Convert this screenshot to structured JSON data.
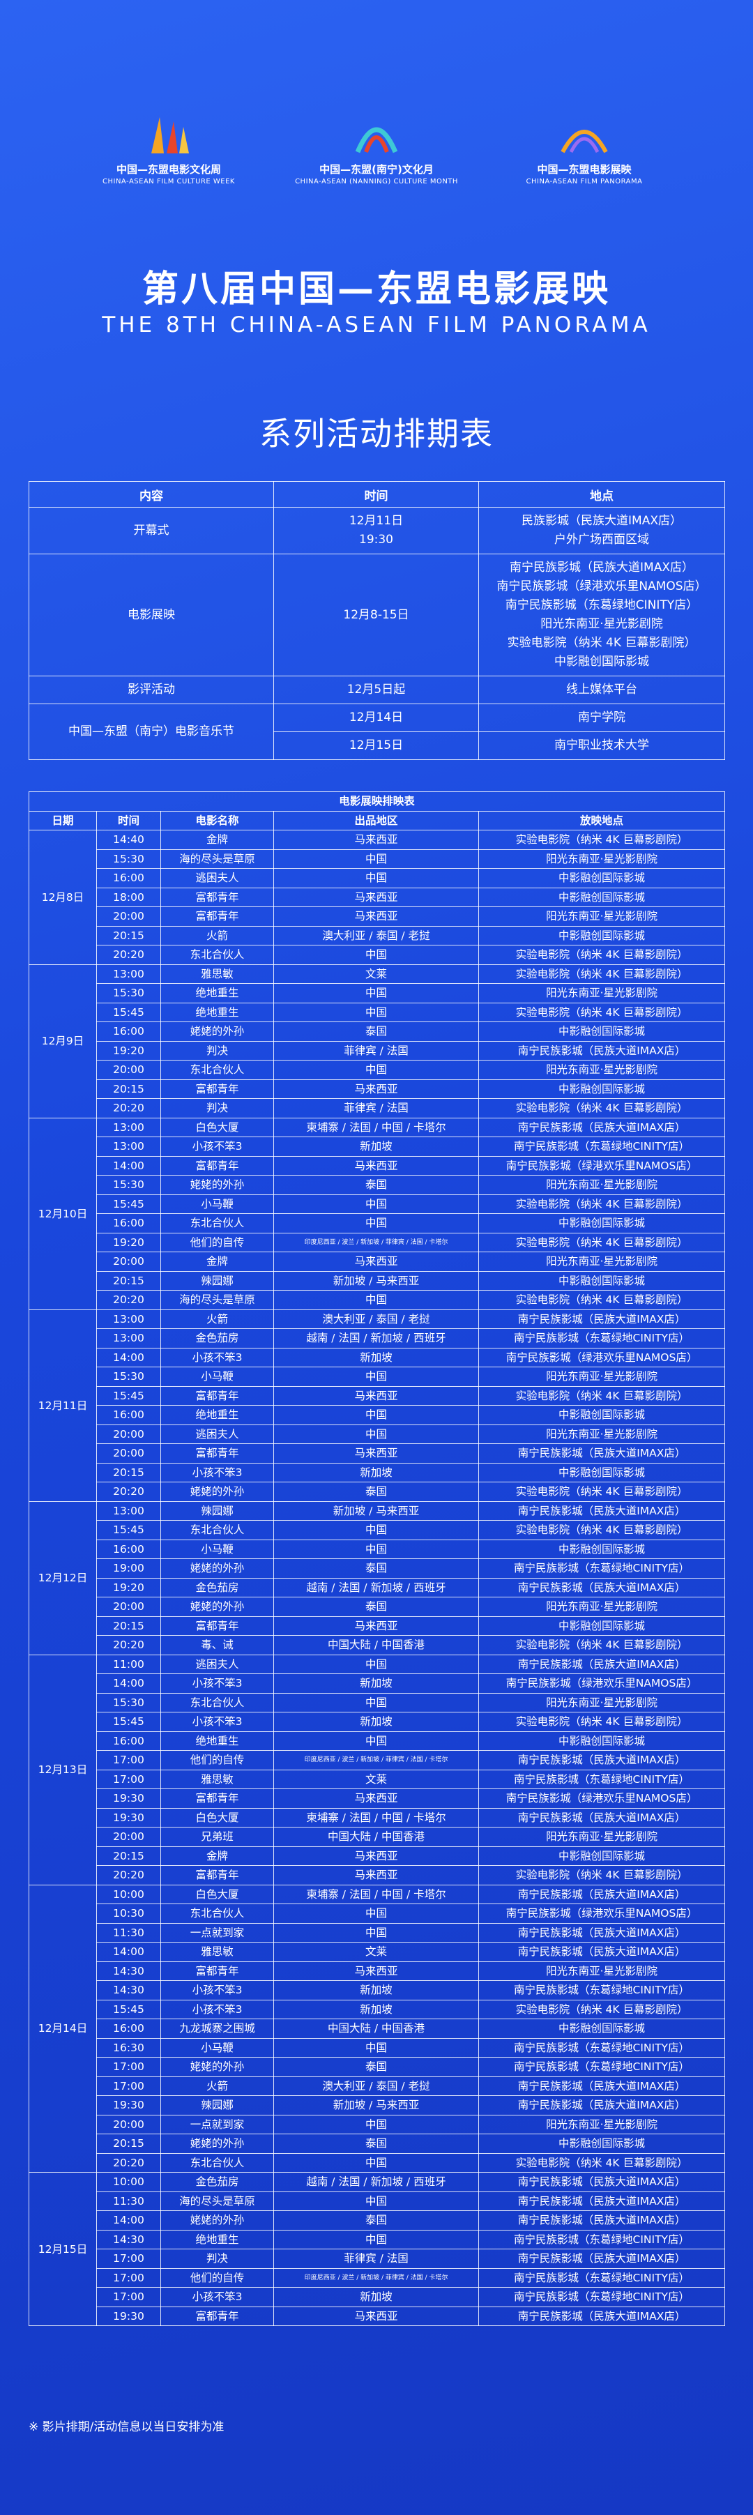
{
  "header": {
    "logos": [
      {
        "name": "中国—东盟电影文化周",
        "en": "CHINA-ASEAN FILM CULTURE WEEK"
      },
      {
        "name": "中国—东盟(南宁)文化月",
        "en": "CHINA-ASEAN (NANNING) CULTURE MONTH"
      },
      {
        "name": "中国—东盟电影展映",
        "en": "CHINA-ASEAN FILM PANORAMA"
      }
    ],
    "title": "第八届中国—东盟电影展映",
    "subtitle": "THE 8TH CHINA-ASEAN FILM PANORAMA",
    "heading": "系列活动排期表"
  },
  "events": {
    "headers": [
      "内容",
      "时间",
      "地点"
    ],
    "rows": [
      {
        "content": "开幕式",
        "items": [
          {
            "time": [
              "12月11日",
              "19:30"
            ],
            "venue": [
              "民族影城（民族大道IMAX店）",
              "户外广场西面区域"
            ]
          }
        ]
      },
      {
        "content": "电影展映",
        "items": [
          {
            "time": [
              "12月8-15日"
            ],
            "venue": [
              "南宁民族影城（民族大道IMAX店）",
              "南宁民族影城（绿港欢乐里NAMOS店）",
              "南宁民族影城（东葛绿地CINITY店）",
              "阳光东南亚·星光影剧院",
              "实验电影院（纳米 4K 巨幕影剧院）",
              "中影融创国际影城"
            ]
          }
        ]
      },
      {
        "content": "影评活动",
        "items": [
          {
            "time": [
              "12月5日起"
            ],
            "venue": [
              "线上媒体平台"
            ]
          }
        ]
      },
      {
        "content": "中国—东盟（南宁）电影音乐节",
        "items": [
          {
            "time": [
              "12月14日"
            ],
            "venue": [
              "南宁学院"
            ]
          },
          {
            "time": [
              "12月15日"
            ],
            "venue": [
              "南宁职业技术大学"
            ]
          }
        ]
      }
    ]
  },
  "schedule": {
    "title": "电影展映排映表",
    "headers": [
      "日期",
      "时间",
      "电影名称",
      "出品地区",
      "放映地点"
    ],
    "days": [
      {
        "date": "12月8日",
        "rows": [
          [
            "14:40",
            "金牌",
            "马来西亚",
            "实验电影院（纳米 4K 巨幕影剧院）"
          ],
          [
            "15:30",
            "海的尽头是草原",
            "中国",
            "阳光东南亚·星光影剧院"
          ],
          [
            "16:00",
            "逃困夫人",
            "中国",
            "中影融创国际影城"
          ],
          [
            "18:00",
            "富都青年",
            "马来西亚",
            "中影融创国际影城"
          ],
          [
            "20:00",
            "富都青年",
            "马来西亚",
            "阳光东南亚·星光影剧院"
          ],
          [
            "20:15",
            "火箭",
            "澳大利亚 / 泰国 / 老挝",
            "中影融创国际影城"
          ],
          [
            "20:20",
            "东北合伙人",
            "中国",
            "实验电影院（纳米 4K 巨幕影剧院）"
          ]
        ]
      },
      {
        "date": "12月9日",
        "rows": [
          [
            "13:00",
            "雅思敏",
            "文莱",
            "实验电影院（纳米 4K 巨幕影剧院）"
          ],
          [
            "15:30",
            "绝地重生",
            "中国",
            "阳光东南亚·星光影剧院"
          ],
          [
            "15:45",
            "绝地重生",
            "中国",
            "实验电影院（纳米 4K 巨幕影剧院）"
          ],
          [
            "16:00",
            "姥姥的外孙",
            "泰国",
            "中影融创国际影城"
          ],
          [
            "19:20",
            "判决",
            "菲律宾 / 法国",
            "南宁民族影城（民族大道IMAX店）"
          ],
          [
            "20:00",
            "东北合伙人",
            "中国",
            "阳光东南亚·星光影剧院"
          ],
          [
            "20:15",
            "富都青年",
            "马来西亚",
            "中影融创国际影城"
          ],
          [
            "20:20",
            "判决",
            "菲律宾 / 法国",
            "实验电影院（纳米 4K 巨幕影剧院）"
          ]
        ]
      },
      {
        "date": "12月10日",
        "rows": [
          [
            "13:00",
            "白色大厦",
            "柬埔寨 / 法国 / 中国 / 卡塔尔",
            "南宁民族影城（民族大道IMAX店）"
          ],
          [
            "13:00",
            "小孩不笨3",
            "新加坡",
            "南宁民族影城（东葛绿地CINITY店）"
          ],
          [
            "14:00",
            "富都青年",
            "马来西亚",
            "南宁民族影城（绿港欢乐里NAMOS店）"
          ],
          [
            "15:30",
            "姥姥的外孙",
            "泰国",
            "阳光东南亚·星光影剧院"
          ],
          [
            "15:45",
            "小马鞭",
            "中国",
            "实验电影院（纳米 4K 巨幕影剧院）"
          ],
          [
            "16:00",
            "东北合伙人",
            "中国",
            "中影融创国际影城"
          ],
          [
            "19:20",
            "他们的自传",
            "印度尼西亚 / 波兰 / 新加坡 / 菲律宾 / 法国 / 卡塔尔",
            "实验电影院（纳米 4K 巨幕影剧院）"
          ],
          [
            "20:00",
            "金牌",
            "马来西亚",
            "阳光东南亚·星光影剧院"
          ],
          [
            "20:15",
            "辣园娜",
            "新加坡 / 马来西亚",
            "中影融创国际影城"
          ],
          [
            "20:20",
            "海的尽头是草原",
            "中国",
            "实验电影院（纳米 4K 巨幕影剧院）"
          ]
        ]
      },
      {
        "date": "12月11日",
        "rows": [
          [
            "13:00",
            "火箭",
            "澳大利亚 / 泰国 / 老挝",
            "南宁民族影城（民族大道IMAX店）"
          ],
          [
            "13:00",
            "金色茄房",
            "越南 / 法国 / 新加坡 / 西班牙",
            "南宁民族影城（东葛绿地CINITY店）"
          ],
          [
            "14:00",
            "小孩不笨3",
            "新加坡",
            "南宁民族影城（绿港欢乐里NAMOS店）"
          ],
          [
            "15:30",
            "小马鞭",
            "中国",
            "阳光东南亚·星光影剧院"
          ],
          [
            "15:45",
            "富都青年",
            "马来西亚",
            "实验电影院（纳米 4K 巨幕影剧院）"
          ],
          [
            "16:00",
            "绝地重生",
            "中国",
            "中影融创国际影城"
          ],
          [
            "20:00",
            "逃困夫人",
            "中国",
            "阳光东南亚·星光影剧院"
          ],
          [
            "20:00",
            "富都青年",
            "马来西亚",
            "南宁民族影城（民族大道IMAX店）"
          ],
          [
            "20:15",
            "小孩不笨3",
            "新加坡",
            "中影融创国际影城"
          ],
          [
            "20:20",
            "姥姥的外孙",
            "泰国",
            "实验电影院（纳米 4K 巨幕影剧院）"
          ]
        ]
      },
      {
        "date": "12月12日",
        "rows": [
          [
            "13:00",
            "辣园娜",
            "新加坡 / 马来西亚",
            "南宁民族影城（民族大道IMAX店）"
          ],
          [
            "15:45",
            "东北合伙人",
            "中国",
            "实验电影院（纳米 4K 巨幕影剧院）"
          ],
          [
            "16:00",
            "小马鞭",
            "中国",
            "中影融创国际影城"
          ],
          [
            "19:00",
            "姥姥的外孙",
            "泰国",
            "南宁民族影城（东葛绿地CINITY店）"
          ],
          [
            "19:20",
            "金色茄房",
            "越南 / 法国 / 新加坡 / 西班牙",
            "南宁民族影城（民族大道IMAX店）"
          ],
          [
            "20:00",
            "姥姥的外孙",
            "泰国",
            "阳光东南亚·星光影剧院"
          ],
          [
            "20:15",
            "富都青年",
            "马来西亚",
            "中影融创国际影城"
          ],
          [
            "20:20",
            "毒、诫",
            "中国大陆 / 中国香港",
            "实验电影院（纳米 4K 巨幕影剧院）"
          ]
        ]
      },
      {
        "date": "12月13日",
        "rows": [
          [
            "11:00",
            "逃困夫人",
            "中国",
            "南宁民族影城（民族大道IMAX店）"
          ],
          [
            "14:00",
            "小孩不笨3",
            "新加坡",
            "南宁民族影城（绿港欢乐里NAMOS店）"
          ],
          [
            "15:30",
            "东北合伙人",
            "中国",
            "阳光东南亚·星光影剧院"
          ],
          [
            "15:45",
            "小孩不笨3",
            "新加坡",
            "实验电影院（纳米 4K 巨幕影剧院）"
          ],
          [
            "16:00",
            "绝地重生",
            "中国",
            "中影融创国际影城"
          ],
          [
            "17:00",
            "他们的自传",
            "印度尼西亚 / 波兰 / 新加坡 / 菲律宾 / 法国 / 卡塔尔",
            "南宁民族影城（民族大道IMAX店）"
          ],
          [
            "17:00",
            "雅思敏",
            "文莱",
            "南宁民族影城（东葛绿地CINITY店）"
          ],
          [
            "19:30",
            "富都青年",
            "马来西亚",
            "南宁民族影城（绿港欢乐里NAMOS店）"
          ],
          [
            "19:30",
            "白色大厦",
            "柬埔寨 / 法国 / 中国 / 卡塔尔",
            "南宁民族影城（民族大道IMAX店）"
          ],
          [
            "20:00",
            "兄弟班",
            "中国大陆 / 中国香港",
            "阳光东南亚·星光影剧院"
          ],
          [
            "20:15",
            "金牌",
            "马来西亚",
            "中影融创国际影城"
          ],
          [
            "20:20",
            "富都青年",
            "马来西亚",
            "实验电影院（纳米 4K 巨幕影剧院）"
          ]
        ]
      },
      {
        "date": "12月14日",
        "rows": [
          [
            "10:00",
            "白色大厦",
            "柬埔寨 / 法国 / 中国 / 卡塔尔",
            "南宁民族影城（民族大道IMAX店）"
          ],
          [
            "10:30",
            "东北合伙人",
            "中国",
            "南宁民族影城（绿港欢乐里NAMOS店）"
          ],
          [
            "11:30",
            "一点就到家",
            "中国",
            "南宁民族影城（民族大道IMAX店）"
          ],
          [
            "14:00",
            "雅思敏",
            "文莱",
            "南宁民族影城（民族大道IMAX店）"
          ],
          [
            "14:30",
            "富都青年",
            "马来西亚",
            "阳光东南亚·星光影剧院"
          ],
          [
            "14:30",
            "小孩不笨3",
            "新加坡",
            "南宁民族影城（东葛绿地CINITY店）"
          ],
          [
            "15:45",
            "小孩不笨3",
            "新加坡",
            "实验电影院（纳米 4K 巨幕影剧院）"
          ],
          [
            "16:00",
            "九龙城寨之围城",
            "中国大陆 / 中国香港",
            "中影融创国际影城"
          ],
          [
            "16:30",
            "小马鞭",
            "中国",
            "南宁民族影城（东葛绿地CINITY店）"
          ],
          [
            "17:00",
            "姥姥的外孙",
            "泰国",
            "南宁民族影城（东葛绿地CINITY店）"
          ],
          [
            "17:00",
            "火箭",
            "澳大利亚 / 泰国 / 老挝",
            "南宁民族影城（民族大道IMAX店）"
          ],
          [
            "19:30",
            "辣园娜",
            "新加坡 / 马来西亚",
            "南宁民族影城（民族大道IMAX店）"
          ],
          [
            "20:00",
            "一点就到家",
            "中国",
            "阳光东南亚·星光影剧院"
          ],
          [
            "20:15",
            "姥姥的外孙",
            "泰国",
            "中影融创国际影城"
          ],
          [
            "20:20",
            "东北合伙人",
            "中国",
            "实验电影院（纳米 4K 巨幕影剧院）"
          ]
        ]
      },
      {
        "date": "12月15日",
        "rows": [
          [
            "10:00",
            "金色茄房",
            "越南 / 法国 / 新加坡 / 西班牙",
            "南宁民族影城（民族大道IMAX店）"
          ],
          [
            "11:30",
            "海的尽头是草原",
            "中国",
            "南宁民族影城（民族大道IMAX店）"
          ],
          [
            "14:00",
            "姥姥的外孙",
            "泰国",
            "南宁民族影城（民族大道IMAX店）"
          ],
          [
            "14:30",
            "绝地重生",
            "中国",
            "南宁民族影城（东葛绿地CINITY店）"
          ],
          [
            "17:00",
            "判决",
            "菲律宾 / 法国",
            "南宁民族影城（民族大道IMAX店）"
          ],
          [
            "17:00",
            "他们的自传",
            "印度尼西亚 / 波兰 / 新加坡 / 菲律宾 / 法国 / 卡塔尔",
            "南宁民族影城（东葛绿地CINITY店）"
          ],
          [
            "17:00",
            "小孩不笨3",
            "新加坡",
            "南宁民族影城（东葛绿地CINITY店）"
          ],
          [
            "19:30",
            "富都青年",
            "马来西亚",
            "南宁民族影城（民族大道IMAX店）"
          ]
        ]
      }
    ]
  },
  "footnote": "※ 影片排期/活动信息以当日安排为准"
}
